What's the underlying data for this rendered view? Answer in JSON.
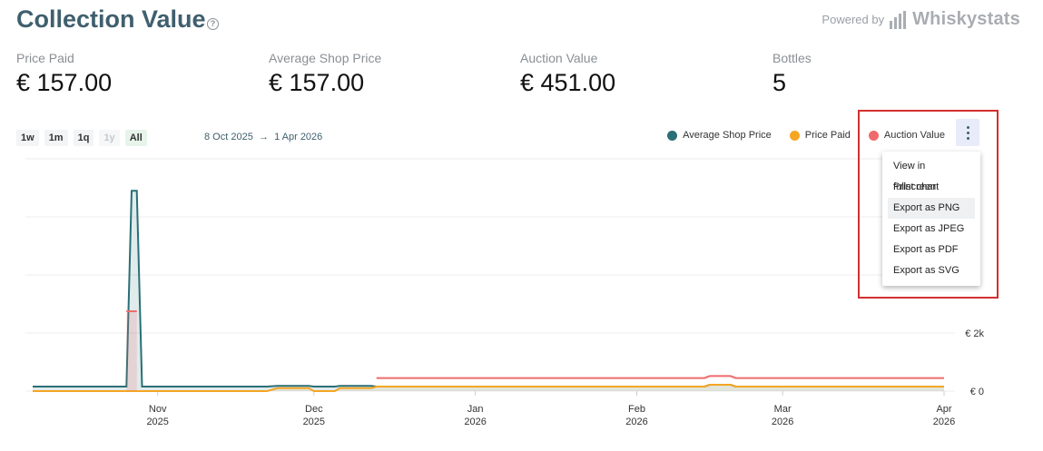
{
  "header": {
    "title": "Collection Value",
    "help_icon": "?",
    "powered_by": "Powered by",
    "brand": "Whiskystats"
  },
  "stats": [
    {
      "label": "Price Paid",
      "value": "€ 157.00"
    },
    {
      "label": "Average Shop Price",
      "value": "€ 157.00"
    },
    {
      "label": "Auction Value",
      "value": "€ 451.00"
    },
    {
      "label": "Bottles",
      "value": "5"
    }
  ],
  "ranges": [
    {
      "label": "1w",
      "state": "normal"
    },
    {
      "label": "1m",
      "state": "normal"
    },
    {
      "label": "1q",
      "state": "normal"
    },
    {
      "label": "1y",
      "state": "disabled"
    },
    {
      "label": "All",
      "state": "active"
    }
  ],
  "date_range": {
    "start": "8 Oct 2025",
    "arrow": "→",
    "end": "1 Apr 2026"
  },
  "menu": {
    "icon": "more-vertical-icon",
    "items": [
      "View in fullscreen",
      "Print chart",
      "Export as PNG",
      "Export as JPEG",
      "Export as PDF",
      "Export as SVG"
    ],
    "hovered_index": 2
  },
  "chart_data": {
    "type": "area",
    "series": [
      {
        "name": "Average Shop Price",
        "color": "#2a6f76",
        "points": [
          [
            "2025-10-08",
            157
          ],
          [
            "2025-10-26",
            157
          ],
          [
            "2025-10-27",
            6900
          ],
          [
            "2025-10-28",
            6900
          ],
          [
            "2025-10-29",
            157
          ],
          [
            "2025-11-22",
            157
          ],
          [
            "2025-11-24",
            180
          ],
          [
            "2025-11-30",
            180
          ],
          [
            "2025-12-01",
            157
          ],
          [
            "2025-12-05",
            157
          ],
          [
            "2025-12-06",
            180
          ],
          [
            "2025-12-12",
            180
          ],
          [
            "2025-12-13",
            157
          ],
          [
            "2026-02-14",
            157
          ],
          [
            "2026-02-15",
            220
          ],
          [
            "2026-02-19",
            220
          ],
          [
            "2026-02-20",
            157
          ],
          [
            "2026-04-01",
            157
          ]
        ]
      },
      {
        "name": "Price Paid",
        "color": "#f5a623",
        "points": [
          [
            "2025-10-08",
            0
          ],
          [
            "2025-11-22",
            0
          ],
          [
            "2025-11-24",
            100
          ],
          [
            "2025-11-30",
            100
          ],
          [
            "2025-12-01",
            0
          ],
          [
            "2025-12-05",
            0
          ],
          [
            "2025-12-06",
            100
          ],
          [
            "2025-12-12",
            100
          ],
          [
            "2025-12-13",
            157
          ],
          [
            "2026-02-14",
            157
          ],
          [
            "2026-02-15",
            220
          ],
          [
            "2026-02-19",
            220
          ],
          [
            "2026-02-20",
            157
          ],
          [
            "2026-04-01",
            157
          ]
        ]
      },
      {
        "name": "Auction Value",
        "color": "#ef6b6b",
        "points": [
          [
            "2025-10-26",
            2750
          ],
          [
            "2025-10-28",
            2750
          ],
          [
            "2025-12-13",
            451
          ],
          [
            "2026-02-14",
            451
          ],
          [
            "2026-02-15",
            520
          ],
          [
            "2026-02-19",
            520
          ],
          [
            "2026-02-20",
            451
          ],
          [
            "2026-04-01",
            451
          ]
        ]
      }
    ],
    "x_ticks": [
      {
        "date": "2025-11-01",
        "label": "Nov",
        "year": "2025"
      },
      {
        "date": "2025-12-01",
        "label": "Dec",
        "year": "2025"
      },
      {
        "date": "2026-01-01",
        "label": "Jan",
        "year": "2026"
      },
      {
        "date": "2026-02-01",
        "label": "Feb",
        "year": "2026"
      },
      {
        "date": "2026-03-01",
        "label": "Mar",
        "year": "2026"
      },
      {
        "date": "2026-04-01",
        "label": "Apr",
        "year": "2026"
      }
    ],
    "y_ticks": [
      {
        "value": 0,
        "label": "€ 0"
      },
      {
        "value": 2000,
        "label": "€ 2k"
      },
      {
        "value": 4000,
        "label": ""
      },
      {
        "value": 6000,
        "label": ""
      },
      {
        "value": 8000,
        "label": ""
      }
    ],
    "x_range": [
      "2025-10-08",
      "2026-04-01"
    ],
    "y_range": [
      0,
      8000
    ],
    "grid": true,
    "legend": "top-right"
  }
}
